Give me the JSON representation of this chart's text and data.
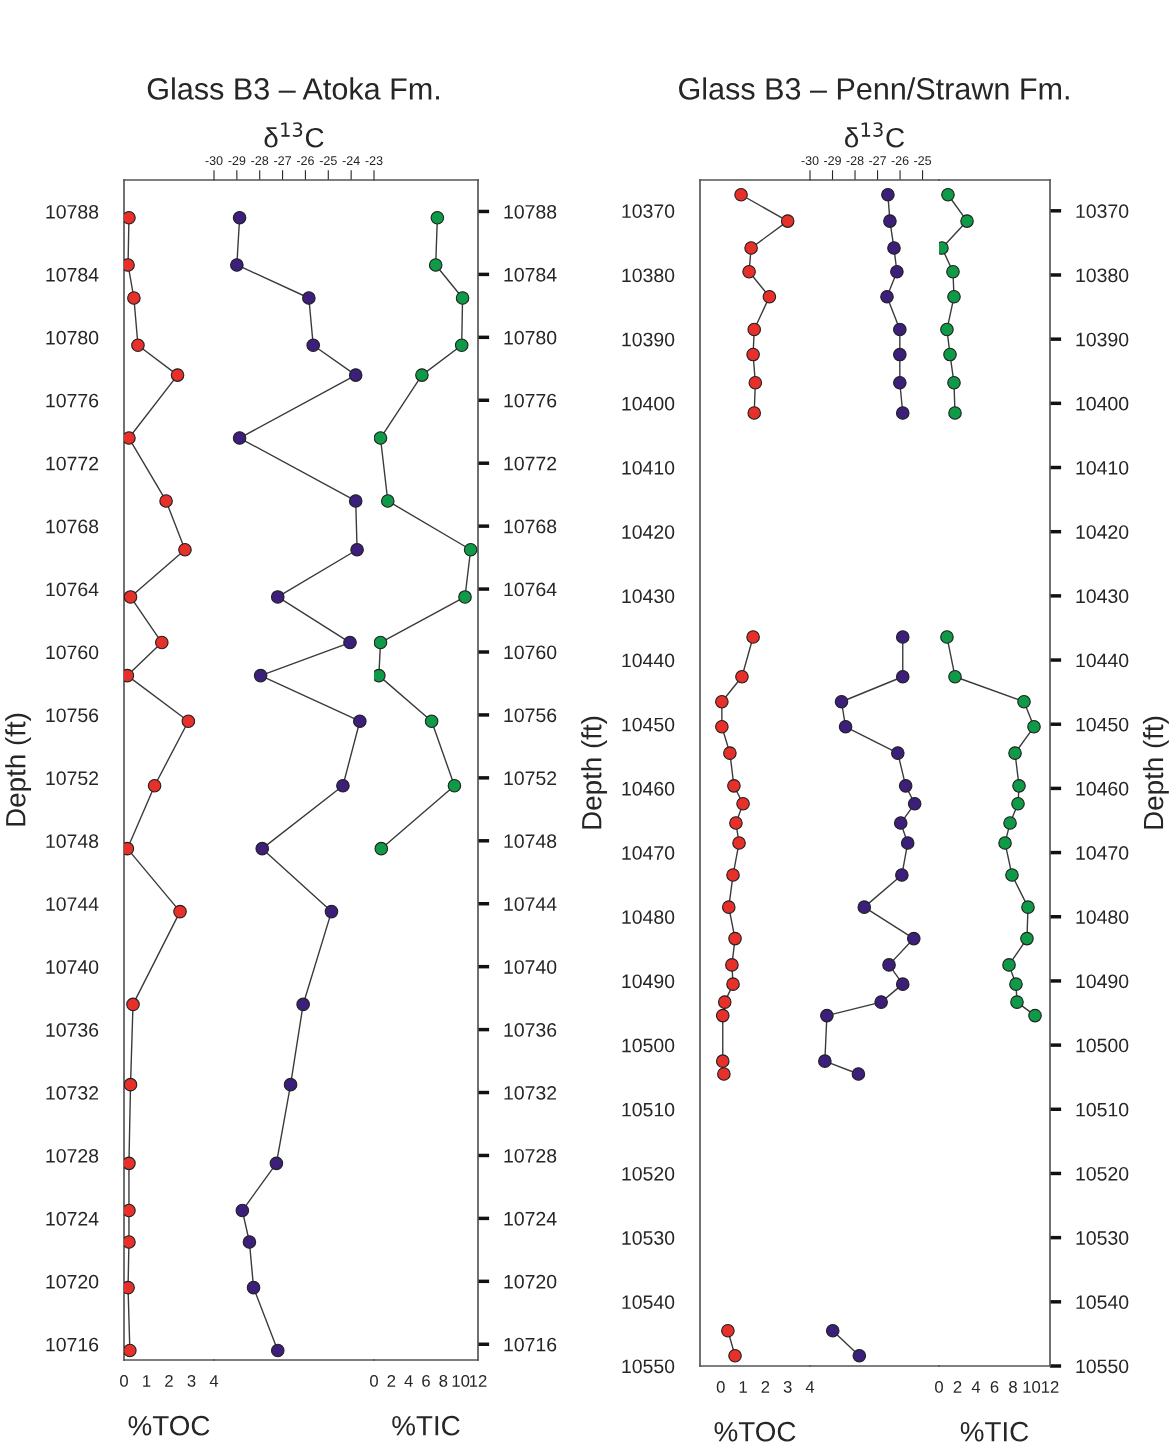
{
  "chart_data": [
    {
      "type": "line",
      "marker": "circle",
      "xlabel": "%TOC",
      "ylabel": "Depth (ft)",
      "xlim": [
        0,
        4
      ],
      "xticks": [
        0,
        1,
        2,
        3,
        4
      ],
      "ylim": [
        10715,
        10790
      ],
      "yticks": [
        10716,
        10720,
        10724,
        10728,
        10732,
        10736,
        10740,
        10744,
        10748,
        10752,
        10756,
        10760,
        10764,
        10768,
        10772,
        10776,
        10780,
        10784,
        10788
      ],
      "series": [
        {
          "color": "#e8302a",
          "x": [
            0.22,
            0.18,
            0.44,
            0.62,
            2.38,
            0.22,
            1.87,
            2.71,
            0.29,
            1.68,
            0.15,
            2.86,
            1.36,
            0.15,
            2.49,
            0.4,
            0.29,
            0.22,
            0.22,
            0.22,
            0.18,
            0.26
          ],
          "values": [
            10787.6,
            10784.6,
            10782.5,
            10779.5,
            10777.6,
            10773.6,
            10769.6,
            10766.5,
            10763.5,
            10760.6,
            10758.5,
            10755.6,
            10751.5,
            10747.5,
            10743.5,
            10737.6,
            10732.5,
            10727.5,
            10724.5,
            10722.5,
            10719.6,
            10715.6
          ]
        }
      ]
    },
    {
      "type": "line",
      "marker": "circle",
      "title": "Glass B3 – Atoka Fm.",
      "xlabel": "δ$^{13}$C",
      "tick_labels": "x",
      "xlim": [
        -30,
        -23
      ],
      "xticks": [
        {
          "value": -30,
          "label": "-30"
        },
        {
          "value": -29,
          "label": "-29"
        },
        {
          "value": -28,
          "label": "-28"
        },
        {
          "value": -27,
          "label": "-27"
        },
        {
          "value": -26,
          "label": "-26"
        },
        {
          "value": -25,
          "label": "-25"
        },
        {
          "value": -24,
          "label": "-24"
        },
        {
          "value": -23,
          "label": "-23"
        }
      ],
      "ylim": [
        10715,
        10790
      ],
      "series": [
        {
          "color": "#3b1f7a",
          "x": [
            -28.88,
            -29.0,
            -25.85,
            -25.66,
            -23.8,
            -28.88,
            -23.8,
            -23.74,
            -27.21,
            -24.05,
            -27.96,
            -23.62,
            -24.36,
            -27.89,
            -24.86,
            -26.1,
            -26.65,
            -27.27,
            -28.76,
            -28.45,
            -28.27,
            -27.21
          ],
          "values": [
            10787.6,
            10784.6,
            10782.5,
            10779.5,
            10777.6,
            10773.6,
            10769.6,
            10766.5,
            10763.5,
            10760.6,
            10758.5,
            10755.6,
            10751.5,
            10747.5,
            10743.5,
            10737.6,
            10732.5,
            10727.5,
            10724.5,
            10722.5,
            10719.6,
            10715.6
          ]
        }
      ]
    },
    {
      "type": "line",
      "marker": "circle",
      "xlabel": "%TIC",
      "xlim": [
        0,
        12
      ],
      "xticks": [
        0,
        2,
        4,
        6,
        8,
        10,
        12
      ],
      "ylim": [
        10715,
        10790
      ],
      "yticks": [
        10716,
        10720,
        10724,
        10728,
        10732,
        10736,
        10740,
        10744,
        10748,
        10752,
        10756,
        10760,
        10764,
        10768,
        10772,
        10776,
        10780,
        10784,
        10788
      ],
      "series": [
        {
          "color": "#0f9a48",
          "x": [
            7.31,
            7.12,
            10.22,
            10.12,
            5.53,
            0.75,
            1.59,
            11.15,
            10.5,
            0.75,
            0.56,
            6.65,
            9.28,
            0.84
          ],
          "values": [
            10787.6,
            10784.6,
            10782.5,
            10779.5,
            10777.6,
            10773.6,
            10769.6,
            10766.5,
            10763.5,
            10760.6,
            10758.5,
            10755.6,
            10751.5,
            10747.5
          ]
        }
      ]
    },
    {
      "type": "line",
      "marker": "circle",
      "xlabel": "%TOC",
      "ylabel": "Depth (ft)",
      "xlim": [
        -0.93,
        4
      ],
      "xticks": [
        0,
        1,
        2,
        3,
        4
      ],
      "ylim": [
        10550,
        10365.2
      ],
      "yticks": [
        10370,
        10380,
        10390,
        10400,
        10410,
        10420,
        10430,
        10440,
        10450,
        10460,
        10470,
        10480,
        10490,
        10500,
        10510,
        10520,
        10530,
        10540,
        10550
      ],
      "series": [
        {
          "color": "#e8302a",
          "x": [
            0.91,
            3.0,
            1.36,
            1.27,
            2.18,
            1.5,
            1.45,
            1.55,
            1.5,
            null,
            1.45,
            0.95,
            0.05,
            0.05,
            0.41,
            0.59,
            1.0,
            0.68,
            0.82,
            0.55,
            0.36,
            0.64,
            0.5,
            0.55,
            0.18,
            0.09,
            0.09,
            0.14,
            null,
            0.32,
            0.64
          ],
          "values": [
            10367.5,
            10371.6,
            10375.8,
            10379.5,
            10383.4,
            10388.5,
            10392.4,
            10396.8,
            10401.5,
            null,
            10436.4,
            10442.6,
            10446.5,
            10450.4,
            10454.5,
            10459.6,
            10462.4,
            10465.4,
            10468.5,
            10473.5,
            10478.5,
            10483.4,
            10487.5,
            10490.5,
            10493.3,
            10495.4,
            10502.5,
            10504.5,
            null,
            10544.5,
            10548.4
          ]
        }
      ]
    },
    {
      "type": "line",
      "marker": "circle",
      "title": "Glass B3 – Penn/Strawn Fm.",
      "xlabel": "δ$^{13}$C",
      "tick_labels": "x",
      "xlim": [
        -30,
        -24.27
      ],
      "xticks": [
        {
          "value": -30,
          "label": "-30"
        },
        {
          "value": -29,
          "label": "-29"
        },
        {
          "value": -28,
          "label": "-28"
        },
        {
          "value": -27,
          "label": "-27"
        },
        {
          "value": -26,
          "label": "-26"
        },
        {
          "value": -25,
          "label": "-25"
        }
      ],
      "ylim": [
        10550,
        10365.2
      ],
      "series": [
        {
          "color": "#3b1f7a",
          "x": [
            -26.54,
            -26.45,
            -26.27,
            -26.14,
            -26.58,
            -26.01,
            -26.01,
            -26.01,
            -25.88,
            null,
            -25.88,
            -25.88,
            -28.6,
            -28.42,
            -26.1,
            -25.75,
            -25.35,
            -25.97,
            -25.66,
            -25.92,
            -27.59,
            -25.39,
            -26.49,
            -25.88,
            -26.84,
            -29.25,
            -29.34,
            -27.85,
            null,
            -28.99,
            -27.81
          ],
          "values": [
            10367.5,
            10371.6,
            10375.8,
            10379.5,
            10383.4,
            10388.5,
            10392.4,
            10396.8,
            10401.5,
            null,
            10436.4,
            10442.6,
            10446.5,
            10450.4,
            10454.5,
            10459.6,
            10462.4,
            10465.4,
            10468.5,
            10473.5,
            10478.5,
            10483.4,
            10487.5,
            10490.5,
            10493.3,
            10495.4,
            10502.5,
            10504.5,
            null,
            10544.5,
            10548.4
          ]
        }
      ]
    },
    {
      "type": "line",
      "marker": "circle",
      "xlabel": "%TIC",
      "ylabel": "Depth (ft)",
      "xlim": [
        0,
        12
      ],
      "xticks": [
        0,
        2,
        4,
        6,
        8,
        10,
        12
      ],
      "ylim": [
        10550,
        10365.2
      ],
      "yticks": [
        10370,
        10380,
        10390,
        10400,
        10410,
        10420,
        10430,
        10440,
        10450,
        10460,
        10470,
        10480,
        10490,
        10500,
        10510,
        10520,
        10530,
        10540,
        10550
      ],
      "series": [
        {
          "color": "#0f9a48",
          "x": [
            0.97,
            3.03,
            0.32,
            1.51,
            1.62,
            0.86,
            1.19,
            1.62,
            1.73,
            null,
            0.86,
            1.73,
            9.19,
            10.27,
            8.22,
            8.65,
            8.54,
            7.68,
            7.14,
            7.89,
            9.62,
            9.51,
            7.57,
            8.32,
            8.43,
            10.38
          ],
          "values": [
            10367.5,
            10371.6,
            10375.8,
            10379.5,
            10383.4,
            10388.5,
            10392.4,
            10396.8,
            10401.5,
            null,
            10436.4,
            10442.6,
            10446.5,
            10450.4,
            10454.5,
            10459.6,
            10462.4,
            10465.4,
            10468.5,
            10473.5,
            10478.5,
            10483.4,
            10487.5,
            10490.5,
            10493.3,
            10495.4
          ]
        }
      ]
    }
  ]
}
